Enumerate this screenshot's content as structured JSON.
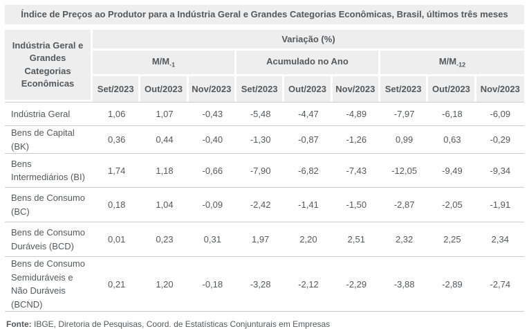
{
  "title": "Índice de Preços ao Produtor para a Indústria Geral e Grandes Categorias Econômicas, Brasil, últimos três meses",
  "table": {
    "row_header": "Indústria Geral e Grandes Categorias Econômicas",
    "variation_header": "Variação (%)",
    "groups": [
      {
        "label": "M/M",
        "sub": "-1"
      },
      {
        "label": "Acumulado no Ano",
        "sub": ""
      },
      {
        "label": "M/M",
        "sub": "-12"
      }
    ],
    "months": [
      "Set/2023",
      "Out/2023",
      "Nov/2023"
    ],
    "rows": [
      {
        "label": "Indústria Geral",
        "values": [
          "1,06",
          "1,07",
          "-0,43",
          "-5,48",
          "-4,47",
          "-4,89",
          "-7,97",
          "-6,18",
          "-6,09"
        ]
      },
      {
        "label": "Bens de Capital (BK)",
        "values": [
          "0,36",
          "0,44",
          "-0,40",
          "-1,30",
          "-0,87",
          "-1,26",
          "0,99",
          "0,63",
          "-0,29"
        ]
      },
      {
        "label": "Bens Intermediários (BI)",
        "values": [
          "1,74",
          "1,18",
          "-0,66",
          "-7,90",
          "-6,82",
          "-7,43",
          "-12,05",
          "-9,49",
          "-9,34"
        ]
      },
      {
        "label": "Bens de Consumo (BC)",
        "values": [
          "0,18",
          "1,04",
          "-0,09",
          "-2,42",
          "-1,41",
          "-1,50",
          "-2,87",
          "-2,05",
          "-1,91"
        ]
      },
      {
        "label": "Bens de Consumo Duráveis (BCD)",
        "values": [
          "0,01",
          "0,23",
          "0,31",
          "1,97",
          "2,20",
          "2,51",
          "2,32",
          "2,25",
          "2,34"
        ]
      },
      {
        "label": "Bens de Consumo Semiduráveis e Não Duráveis (BCND)",
        "values": [
          "0,21",
          "1,20",
          "-0,18",
          "-3,28",
          "-2,12",
          "-2,29",
          "-3,88",
          "-2,89",
          "-2,74"
        ]
      }
    ]
  },
  "footer": {
    "label": "Fonte:",
    "text": " IBGE, Diretoria de Pesquisas, Coord. de Estatísticas Conjunturais em Empresas"
  },
  "colors": {
    "header_bg": "#eeeeee",
    "text": "#55585b",
    "row_border": "#cbcbcb",
    "background": "#ffffff"
  },
  "chart_data": {
    "type": "table",
    "title": "Índice de Preços ao Produtor para a Indústria Geral e Grandes Categorias Econômicas, Brasil, últimos três meses",
    "unit": "Variação (%)",
    "column_groups": [
      "M/M-1",
      "Acumulado no Ano",
      "M/M-12"
    ],
    "columns_per_group": [
      "Set/2023",
      "Out/2023",
      "Nov/2023"
    ],
    "rows": [
      {
        "category": "Indústria Geral",
        "mm1": [
          1.06,
          1.07,
          -0.43
        ],
        "acumulado_ano": [
          -5.48,
          -4.47,
          -4.89
        ],
        "mm12": [
          -7.97,
          -6.18,
          -6.09
        ]
      },
      {
        "category": "Bens de Capital (BK)",
        "mm1": [
          0.36,
          0.44,
          -0.4
        ],
        "acumulado_ano": [
          -1.3,
          -0.87,
          -1.26
        ],
        "mm12": [
          0.99,
          0.63,
          -0.29
        ]
      },
      {
        "category": "Bens Intermediários (BI)",
        "mm1": [
          1.74,
          1.18,
          -0.66
        ],
        "acumulado_ano": [
          -7.9,
          -6.82,
          -7.43
        ],
        "mm12": [
          -12.05,
          -9.49,
          -9.34
        ]
      },
      {
        "category": "Bens de Consumo (BC)",
        "mm1": [
          0.18,
          1.04,
          -0.09
        ],
        "acumulado_ano": [
          -2.42,
          -1.41,
          -1.5
        ],
        "mm12": [
          -2.87,
          -2.05,
          -1.91
        ]
      },
      {
        "category": "Bens de Consumo Duráveis (BCD)",
        "mm1": [
          0.01,
          0.23,
          0.31
        ],
        "acumulado_ano": [
          1.97,
          2.2,
          2.51
        ],
        "mm12": [
          2.32,
          2.25,
          2.34
        ]
      },
      {
        "category": "Bens de Consumo Semiduráveis e Não Duráveis (BCND)",
        "mm1": [
          0.21,
          1.2,
          -0.18
        ],
        "acumulado_ano": [
          -3.28,
          -2.12,
          -2.29
        ],
        "mm12": [
          -3.88,
          -2.89,
          -2.74
        ]
      }
    ],
    "source": "Fonte: IBGE, Diretoria de Pesquisas, Coord. de Estatísticas Conjunturais em Empresas"
  }
}
